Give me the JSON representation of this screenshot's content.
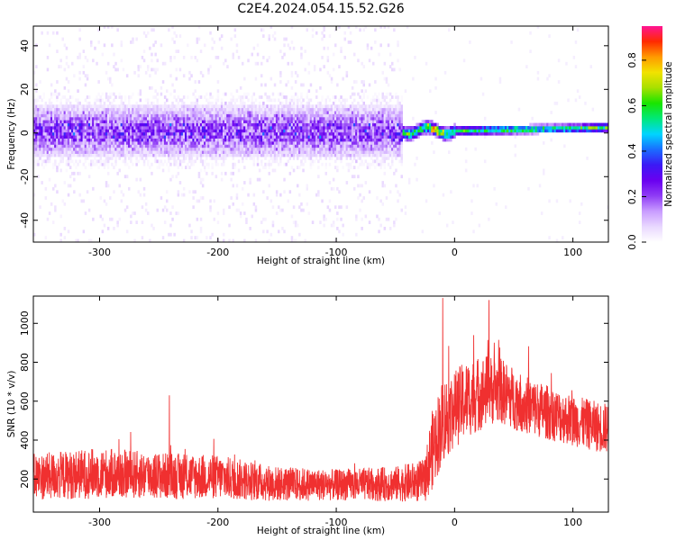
{
  "chart_data": [
    {
      "type": "heatmap",
      "title": "C2E4.2024.054.15.52.G26",
      "xlabel": "Height of straight line (km)",
      "ylabel": "Frequency (Hz)",
      "xlim": [
        -356,
        130
      ],
      "ylim": [
        -50,
        49
      ],
      "xticks": [
        -300,
        -200,
        -100,
        0,
        100
      ],
      "yticks": [
        -40,
        -20,
        0,
        20,
        40
      ],
      "colorbar": {
        "label": "Normalized spectral amplitude",
        "range": [
          0,
          0.95
        ],
        "ticks": [
          "0.0",
          "0.2",
          "0.4",
          "0.6",
          "0.8"
        ],
        "colors": [
          "#ffffff",
          "#e9d8ff",
          "#c99cff",
          "#8f3cf5",
          "#6a00f0",
          "#3c19f5",
          "#1a6dff",
          "#00d5ff",
          "#00e87a",
          "#19e500",
          "#a7e000",
          "#f2e200",
          "#ff9a00",
          "#ff2a00",
          "#ff1493"
        ]
      },
      "description_regions": [
        {
          "x_range": [
            -356,
            -45
          ],
          "character": "broadband noisy spectrum",
          "core_freq_range": [
            -12,
            12
          ],
          "peak_amplitude": 0.3
        },
        {
          "x_range": [
            -45,
            130
          ],
          "character": "narrow line near 0 Hz",
          "core_freq_range": [
            -2,
            3
          ],
          "peak_amplitude": 0.85
        }
      ],
      "grid": false
    },
    {
      "type": "line",
      "title": "",
      "xlabel": "Height of straight line (km)",
      "ylabel": "SNR (10 * v/v)",
      "xlim": [
        -356,
        130
      ],
      "ylim": [
        30,
        1140
      ],
      "xticks": [
        -300,
        -200,
        -100,
        0,
        100
      ],
      "yticks": [
        200,
        400,
        600,
        800,
        1000
      ],
      "series": [
        {
          "color": "#f03030",
          "envelope_x": [
            -356,
            -300,
            -240,
            -200,
            -150,
            -100,
            -50,
            -25,
            -20,
            -10,
            0,
            10,
            25,
            30,
            40,
            60,
            80,
            100,
            120,
            130
          ],
          "envelope_mean": [
            210,
            230,
            215,
            210,
            175,
            170,
            175,
            190,
            330,
            500,
            560,
            610,
            650,
            660,
            650,
            580,
            540,
            500,
            470,
            460
          ],
          "envelope_spread": [
            120,
            130,
            120,
            115,
            90,
            80,
            90,
            110,
            200,
            220,
            200,
            200,
            190,
            180,
            170,
            150,
            140,
            130,
            130,
            130
          ],
          "peaks": [
            {
              "x": -10,
              "y": 1130
            },
            {
              "x": 29,
              "y": 1120
            },
            {
              "x": -241,
              "y": 630
            }
          ]
        }
      ],
      "grid": false
    }
  ]
}
